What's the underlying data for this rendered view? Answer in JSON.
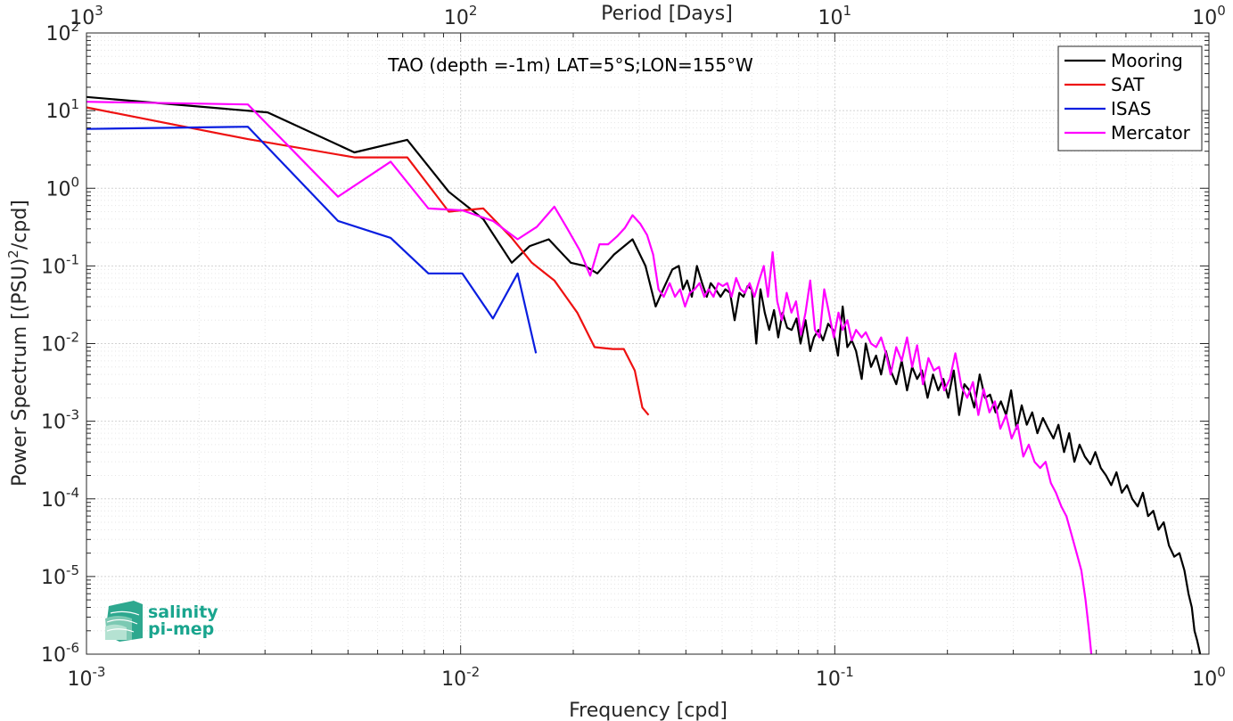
{
  "colors": {
    "mooring": "#000000",
    "sat": "#ee1111",
    "isas": "#0a1ee0",
    "mercator": "#ff00ff",
    "logo": "#1aa58e"
  },
  "logo": {
    "line1": "salinity",
    "line2": "pi-mep"
  },
  "chart_data": {
    "type": "line",
    "title": "TAO (depth =-1m) LAT=5°S;LON=155°W",
    "xlabel": "Frequency [cpd]",
    "x2label": "Period [Days]",
    "ylabel": "Power Spectrum [(PSU)^2/cpd]",
    "xscale": "log",
    "yscale": "log",
    "xlim": [
      0.001,
      1
    ],
    "ylim": [
      1e-06,
      100
    ],
    "grid": true,
    "legend_position": "top-right",
    "x_ticks": [
      {
        "base": "10",
        "exp": "-3"
      },
      {
        "base": "10",
        "exp": "-2"
      },
      {
        "base": "10",
        "exp": "-1"
      },
      {
        "base": "10",
        "exp": "0"
      }
    ],
    "x2_ticks": [
      {
        "base": "10",
        "exp": "3"
      },
      {
        "base": "10",
        "exp": "2"
      },
      {
        "base": "10",
        "exp": "1"
      },
      {
        "base": "10",
        "exp": "0"
      }
    ],
    "y_ticks": [
      {
        "base": "10",
        "exp": "2"
      },
      {
        "base": "10",
        "exp": "1"
      },
      {
        "base": "10",
        "exp": "0"
      },
      {
        "base": "10",
        "exp": "-1"
      },
      {
        "base": "10",
        "exp": "-2"
      },
      {
        "base": "10",
        "exp": "-3"
      },
      {
        "base": "10",
        "exp": "-4"
      },
      {
        "base": "10",
        "exp": "-5"
      },
      {
        "base": "10",
        "exp": "-6"
      }
    ],
    "series": [
      {
        "name": "Mooring",
        "color": "#000000",
        "x": [
          0.001,
          0.00305,
          0.0052,
          0.0072,
          0.0093,
          0.0115,
          0.0137,
          0.0153,
          0.0172,
          0.0197,
          0.0215,
          0.0232,
          0.0257,
          0.0288,
          0.0312,
          0.0332,
          0.0348,
          0.0368,
          0.0383,
          0.0393,
          0.0403,
          0.0415,
          0.0428,
          0.0442,
          0.0455,
          0.0466,
          0.048,
          0.0495,
          0.051,
          0.0525,
          0.054,
          0.0556,
          0.057,
          0.0585,
          0.06,
          0.0617,
          0.0633,
          0.065,
          0.0668,
          0.0688,
          0.0706,
          0.0725,
          0.0746,
          0.0767,
          0.079,
          0.081,
          0.0835,
          0.086,
          0.088,
          0.0905,
          0.093,
          0.096,
          0.099,
          0.102,
          0.105,
          0.108,
          0.111,
          0.114,
          0.118,
          0.121,
          0.125,
          0.129,
          0.133,
          0.137,
          0.141,
          0.146,
          0.151,
          0.156,
          0.161,
          0.166,
          0.171,
          0.177,
          0.183,
          0.189,
          0.195,
          0.201,
          0.208,
          0.215,
          0.222,
          0.229,
          0.236,
          0.244,
          0.252,
          0.26,
          0.269,
          0.278,
          0.287,
          0.296,
          0.306,
          0.316,
          0.326,
          0.337,
          0.348,
          0.36,
          0.372,
          0.384,
          0.396,
          0.41,
          0.423,
          0.437,
          0.451,
          0.466,
          0.482,
          0.497,
          0.514,
          0.531,
          0.548,
          0.566,
          0.585,
          0.604,
          0.624,
          0.645,
          0.666,
          0.688,
          0.71,
          0.733,
          0.757,
          0.782,
          0.808,
          0.834,
          0.86,
          0.882,
          0.9,
          0.915,
          0.93,
          0.94,
          0.947
        ],
        "y": [
          15,
          9.5,
          2.9,
          4.2,
          0.9,
          0.4,
          0.11,
          0.18,
          0.22,
          0.11,
          0.1,
          0.08,
          0.14,
          0.22,
          0.1,
          0.03,
          0.05,
          0.09,
          0.1,
          0.05,
          0.065,
          0.04,
          0.1,
          0.06,
          0.04,
          0.06,
          0.05,
          0.04,
          0.05,
          0.045,
          0.02,
          0.045,
          0.04,
          0.055,
          0.05,
          0.01,
          0.05,
          0.025,
          0.015,
          0.027,
          0.012,
          0.025,
          0.016,
          0.015,
          0.021,
          0.01,
          0.02,
          0.008,
          0.012,
          0.015,
          0.011,
          0.018,
          0.015,
          0.007,
          0.03,
          0.009,
          0.011,
          0.008,
          0.0035,
          0.01,
          0.005,
          0.007,
          0.004,
          0.008,
          0.0045,
          0.003,
          0.006,
          0.0025,
          0.005,
          0.0035,
          0.0045,
          0.002,
          0.004,
          0.0025,
          0.0035,
          0.002,
          0.0045,
          0.0012,
          0.003,
          0.0025,
          0.0015,
          0.004,
          0.002,
          0.0022,
          0.0013,
          0.0018,
          0.0012,
          0.0025,
          0.0008,
          0.0016,
          0.0009,
          0.0013,
          0.0007,
          0.0011,
          0.0008,
          0.0006,
          0.0009,
          0.0004,
          0.0007,
          0.0003,
          0.0005,
          0.00035,
          0.00028,
          0.0004,
          0.00025,
          0.0002,
          0.00015,
          0.00022,
          0.00012,
          0.00015,
          0.0001,
          8e-05,
          0.00012,
          6e-05,
          7e-05,
          4e-05,
          5e-05,
          2.5e-05,
          1.8e-05,
          2e-05,
          1.2e-05,
          6e-06,
          4e-06,
          2e-06,
          1.5e-06,
          1.2e-06,
          1e-06
        ]
      },
      {
        "name": "SAT",
        "color": "#ee1111",
        "x": [
          0.001,
          0.0027,
          0.0052,
          0.0072,
          0.0093,
          0.0115,
          0.0137,
          0.0155,
          0.0178,
          0.0205,
          0.0228,
          0.0255,
          0.0273,
          0.0292,
          0.0306,
          0.0318
        ],
        "y": [
          11,
          4.3,
          2.5,
          2.5,
          0.5,
          0.55,
          0.23,
          0.11,
          0.065,
          0.025,
          0.009,
          0.0085,
          0.0085,
          0.0045,
          0.0015,
          0.0012
        ]
      },
      {
        "name": "ISAS",
        "color": "#0a1ee0",
        "x": [
          0.001,
          0.0027,
          0.0047,
          0.0065,
          0.0082,
          0.0101,
          0.0122,
          0.0142,
          0.0159
        ],
        "y": [
          5.8,
          6.2,
          0.38,
          0.23,
          0.08,
          0.08,
          0.021,
          0.08,
          0.0075
        ]
      },
      {
        "name": "Mercator",
        "color": "#ff00ff",
        "x": [
          0.001,
          0.0027,
          0.0047,
          0.0065,
          0.0082,
          0.0101,
          0.0122,
          0.0142,
          0.016,
          0.0178,
          0.0193,
          0.0208,
          0.0222,
          0.0235,
          0.0248,
          0.0262,
          0.0275,
          0.0288,
          0.0302,
          0.0315,
          0.0327,
          0.0338,
          0.0349,
          0.0362,
          0.0374,
          0.0386,
          0.0398,
          0.041,
          0.0422,
          0.0435,
          0.0448,
          0.046,
          0.0474,
          0.0488,
          0.0502,
          0.0516,
          0.053,
          0.0545,
          0.056,
          0.0575,
          0.0592,
          0.061,
          0.0628,
          0.0646,
          0.0663,
          0.0682,
          0.0702,
          0.0722,
          0.0744,
          0.0766,
          0.0788,
          0.0812,
          0.0835,
          0.086,
          0.0885,
          0.091,
          0.0937,
          0.0965,
          0.0994,
          0.1023,
          0.105,
          0.108,
          0.111,
          0.114,
          0.118,
          0.121,
          0.125,
          0.129,
          0.133,
          0.137,
          0.141,
          0.146,
          0.151,
          0.156,
          0.161,
          0.166,
          0.172,
          0.178,
          0.184,
          0.19,
          0.196,
          0.203,
          0.21,
          0.218,
          0.226,
          0.234,
          0.242,
          0.25,
          0.259,
          0.268,
          0.277,
          0.287,
          0.297,
          0.308,
          0.319,
          0.33,
          0.342,
          0.354,
          0.366,
          0.378,
          0.39,
          0.403,
          0.416,
          0.429,
          0.443,
          0.456,
          0.468,
          0.478,
          0.485
        ],
        "y": [
          13,
          12,
          0.78,
          2.2,
          0.55,
          0.52,
          0.38,
          0.22,
          0.32,
          0.58,
          0.3,
          0.16,
          0.075,
          0.19,
          0.19,
          0.24,
          0.31,
          0.45,
          0.35,
          0.25,
          0.14,
          0.05,
          0.04,
          0.06,
          0.04,
          0.05,
          0.03,
          0.045,
          0.05,
          0.06,
          0.04,
          0.05,
          0.04,
          0.06,
          0.055,
          0.06,
          0.04,
          0.07,
          0.05,
          0.045,
          0.06,
          0.04,
          0.065,
          0.1,
          0.04,
          0.15,
          0.035,
          0.02,
          0.045,
          0.025,
          0.035,
          0.013,
          0.025,
          0.065,
          0.015,
          0.012,
          0.05,
          0.025,
          0.012,
          0.025,
          0.015,
          0.02,
          0.011,
          0.015,
          0.012,
          0.014,
          0.01,
          0.009,
          0.012,
          0.0075,
          0.004,
          0.009,
          0.006,
          0.012,
          0.005,
          0.0095,
          0.003,
          0.0065,
          0.0045,
          0.005,
          0.0025,
          0.0035,
          0.0075,
          0.0028,
          0.002,
          0.0032,
          0.0012,
          0.0026,
          0.0013,
          0.0018,
          0.0008,
          0.0012,
          0.0006,
          0.0009,
          0.00035,
          0.0005,
          0.0003,
          0.00025,
          0.0003,
          0.00016,
          0.00012,
          8e-05,
          6e-05,
          3.5e-05,
          2e-05,
          1.2e-05,
          5e-06,
          2e-06,
          1e-06
        ]
      }
    ]
  }
}
